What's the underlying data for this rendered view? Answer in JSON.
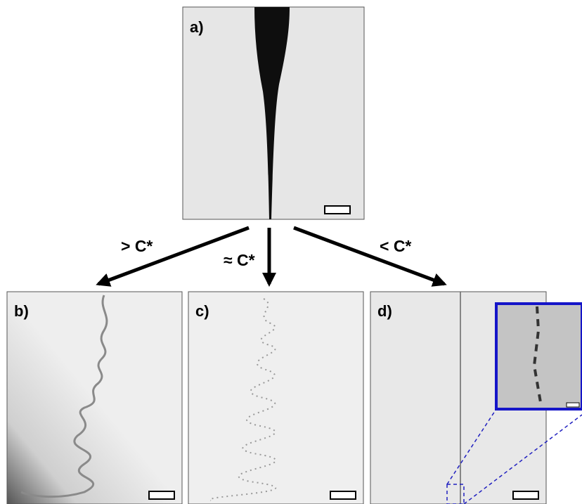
{
  "panels": [
    {
      "label": "a)"
    },
    {
      "label": "b)"
    },
    {
      "label": "c)"
    },
    {
      "label": "d)"
    }
  ],
  "arrows": [
    {
      "label": "> C*"
    },
    {
      "label": "≈ C*"
    },
    {
      "label": "< C*"
    }
  ]
}
